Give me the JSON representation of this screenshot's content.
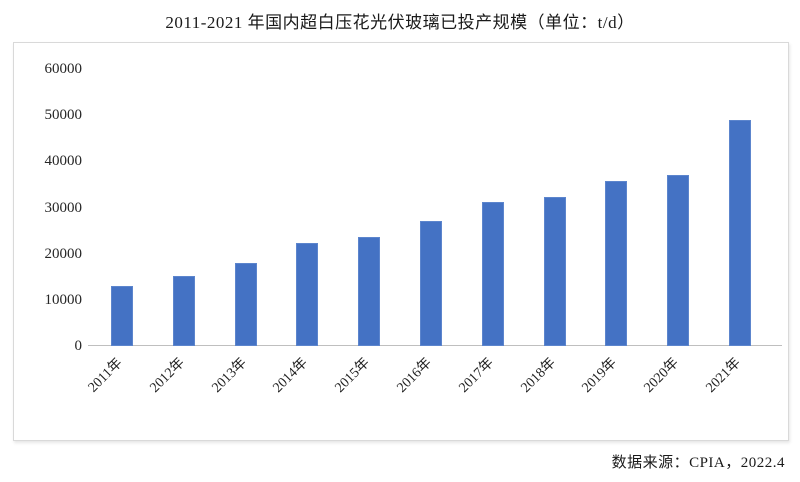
{
  "title": "2011-2021 年国内超白压花光伏玻璃已投产规模（单位：t/d）",
  "source": "数据来源：CPIA，2022.4",
  "colors": {
    "bar": "#4472C4",
    "axis_line": "#BFBFBF",
    "box_border": "#D9D9D9",
    "text": "#1A1A1A"
  },
  "chart_data": {
    "type": "bar",
    "title": "2011-2021 年国内超白压花光伏玻璃已投产规模（单位：t/d）",
    "unit": "t/d",
    "categories": [
      "2011年",
      "2012年",
      "2013年",
      "2014年",
      "2015年",
      "2016年",
      "2017年",
      "2018年",
      "2019年",
      "2020年",
      "2021年"
    ],
    "values": [
      13000,
      15200,
      18000,
      22300,
      23600,
      27100,
      31200,
      32300,
      35700,
      37000,
      49000
    ],
    "xlabel": "",
    "ylabel": "",
    "ylim": [
      0,
      60000
    ],
    "yticks": [
      0,
      10000,
      20000,
      30000,
      40000,
      50000,
      60000
    ],
    "grid": false,
    "legend": false,
    "bar_color": "#4472C4",
    "x_tick_rotation_deg": 45,
    "source_note": "数据来源：CPIA，2022.4"
  }
}
